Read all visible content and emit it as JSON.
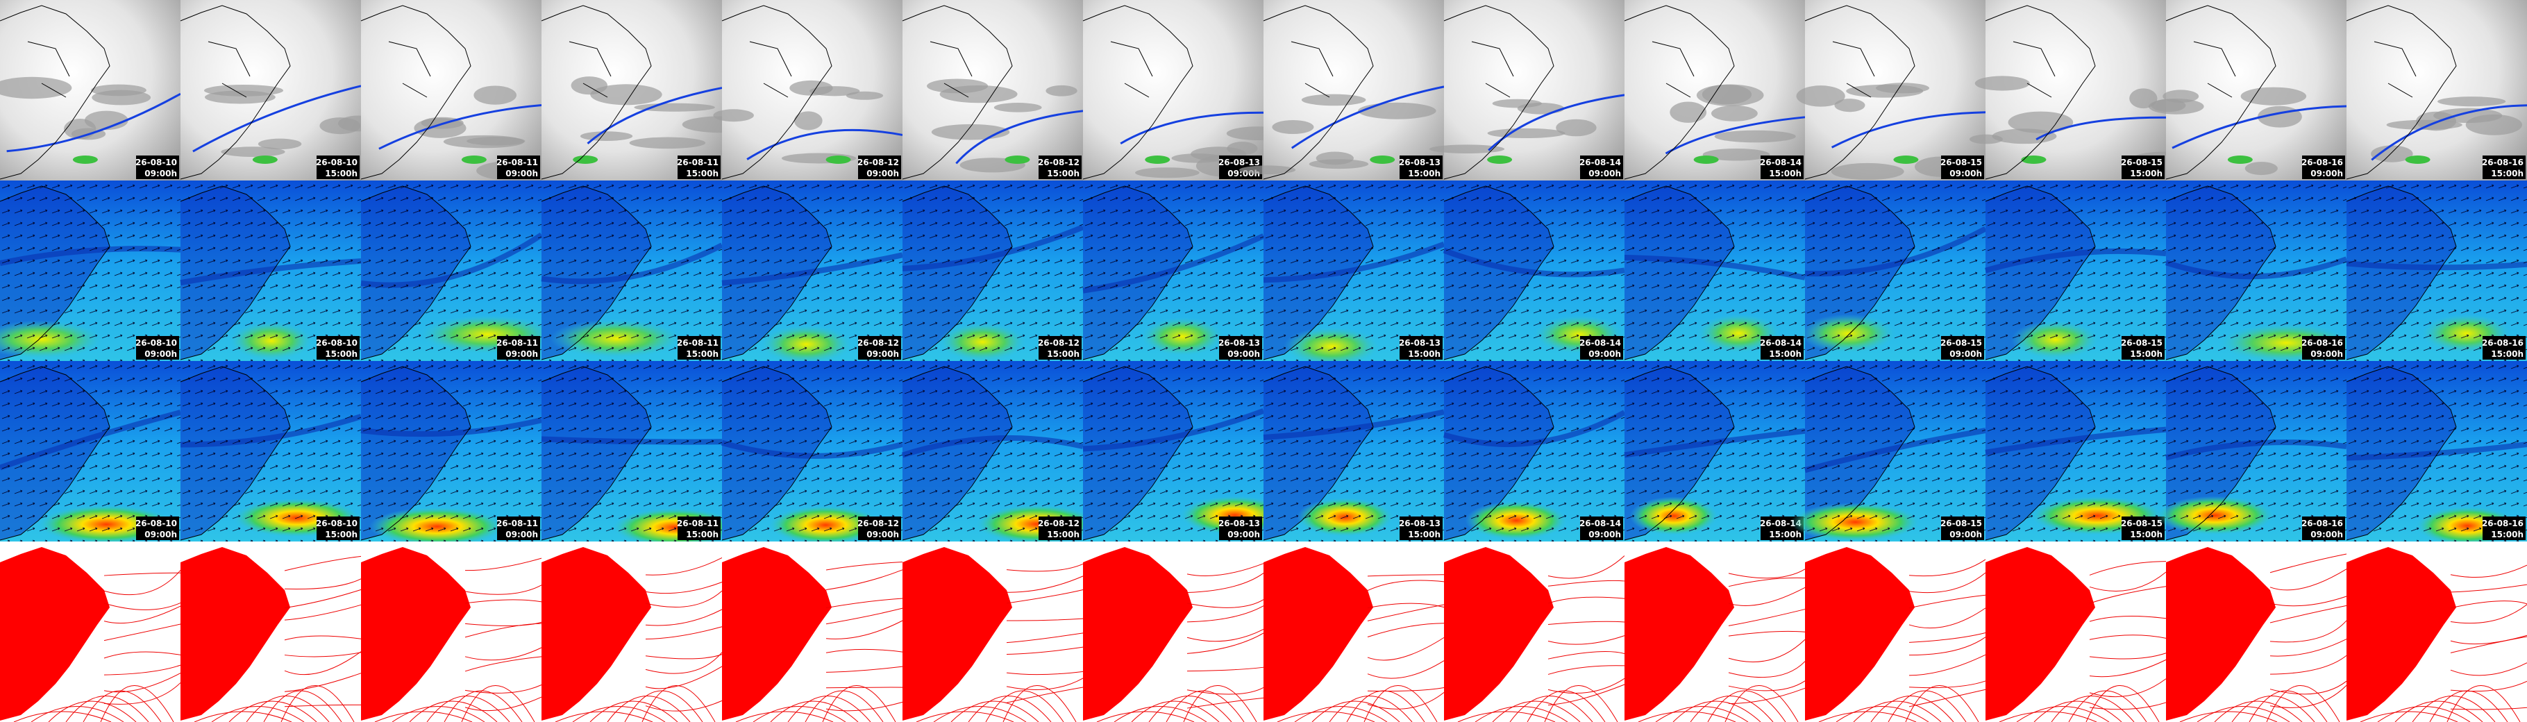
{
  "timestamps": [
    {
      "date": "26-08-10",
      "time": "09:00h"
    },
    {
      "date": "26-08-10",
      "time": "15:00h"
    },
    {
      "date": "26-08-11",
      "time": "09:00h"
    },
    {
      "date": "26-08-11",
      "time": "15:00h"
    },
    {
      "date": "26-08-12",
      "time": "09:00h"
    },
    {
      "date": "26-08-12",
      "time": "15:00h"
    },
    {
      "date": "26-08-13",
      "time": "09:00h"
    },
    {
      "date": "26-08-13",
      "time": "15:00h"
    },
    {
      "date": "26-08-14",
      "time": "09:00h"
    },
    {
      "date": "26-08-14",
      "time": "15:00h"
    },
    {
      "date": "26-08-15",
      "time": "09:00h"
    },
    {
      "date": "26-08-15",
      "time": "15:00h"
    },
    {
      "date": "26-08-16",
      "time": "09:00h"
    },
    {
      "date": "26-08-16",
      "time": "15:00h"
    }
  ],
  "panels": [
    {
      "type": "satellite",
      "labels": true
    },
    {
      "type": "wind",
      "labels": true
    },
    {
      "type": "wind-strong",
      "labels": true
    },
    {
      "type": "pressure",
      "labels": false
    }
  ]
}
